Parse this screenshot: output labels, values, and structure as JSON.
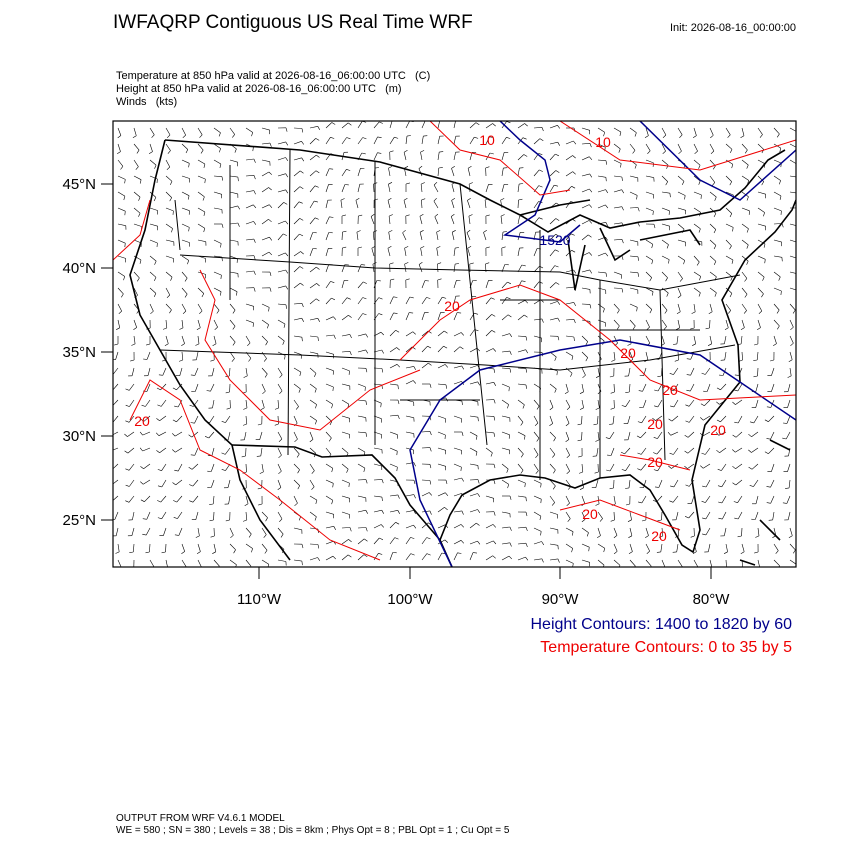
{
  "header": {
    "title": "IWFAQRP Contiguous US Real Time WRF",
    "init": "Init: 2026-08-16_00:00:00"
  },
  "fields": [
    "Temperature at 850 hPa valid at 2026-08-16_06:00:00 UTC   (C)",
    "Height at 850 hPa valid at 2026-08-16_06:00:00 UTC   (m)",
    "Winds   (kts)"
  ],
  "map": {
    "lat_labels": [
      "45°N",
      "40°N",
      "35°N",
      "30°N",
      "25°N"
    ],
    "lon_labels": [
      "110°W",
      "100°W",
      "90°W",
      "80°W"
    ],
    "contour_labels": [
      "10",
      "10",
      "1520",
      "20",
      "20",
      "20",
      "20",
      "20",
      "20",
      "20",
      "20",
      "20"
    ]
  },
  "legend": [
    "Height Contours: 1400 to 1820 by 60",
    "Temperature Contours: 0 to 35 by 5"
  ],
  "footer": [
    "OUTPUT FROM WRF V4.6.1 MODEL",
    "WE = 580 ; SN = 380 ; Levels = 38 ; Dis = 8km ; Phys Opt = 8 ; PBL Opt = 1 ; Cu Opt = 5"
  ]
}
